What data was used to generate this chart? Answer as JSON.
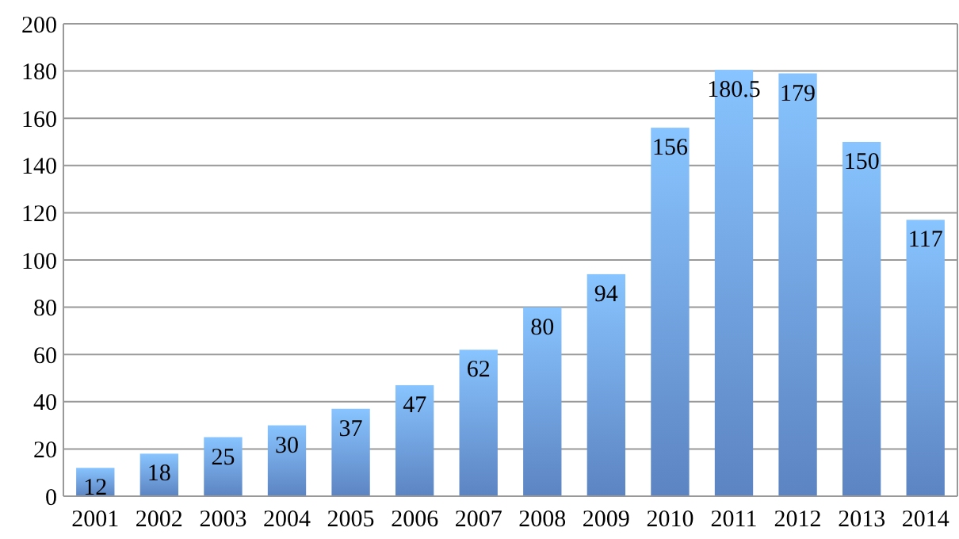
{
  "chart_data": {
    "type": "bar",
    "categories": [
      "2001",
      "2002",
      "2003",
      "2004",
      "2005",
      "2006",
      "2007",
      "2008",
      "2009",
      "2010",
      "2011",
      "2012",
      "2013",
      "2014"
    ],
    "values": [
      12,
      18,
      25,
      30,
      37,
      47,
      62,
      80,
      94,
      156,
      180.5,
      179,
      150,
      117
    ],
    "color": "#6e9ee8",
    "ylim": [
      0,
      200
    ],
    "yticks": [
      0,
      20,
      40,
      60,
      80,
      100,
      120,
      140,
      160,
      180,
      200
    ],
    "grid": true,
    "data_labels": true
  }
}
